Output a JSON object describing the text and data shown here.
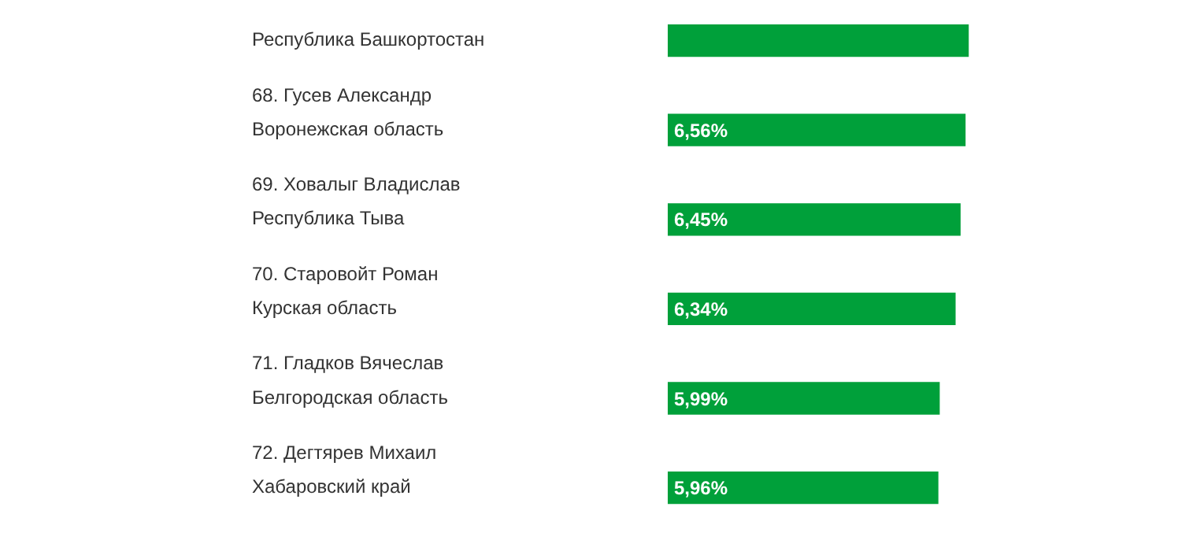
{
  "chart_data": {
    "type": "bar",
    "orientation": "horizontal",
    "categories": [
      "Республика Башкортостан",
      "68. Гусев Александр\nВоронежская область",
      "69. Ховалыг Владислав\nРеспублика Тыва",
      "70. Старовойт Роман\nКурская область",
      "71. Гладков Вячеслав\nБелгородская область",
      "72. Дегтярев Михаил\nХабаровский край"
    ],
    "values": [
      6.63,
      6.56,
      6.45,
      6.34,
      5.99,
      5.96
    ],
    "value_labels": [
      null,
      "6,56%",
      "6,45%",
      "6,34%",
      "5,99%",
      "5,96%"
    ],
    "color": "#00a03a",
    "tick_labels": "y"
  }
}
